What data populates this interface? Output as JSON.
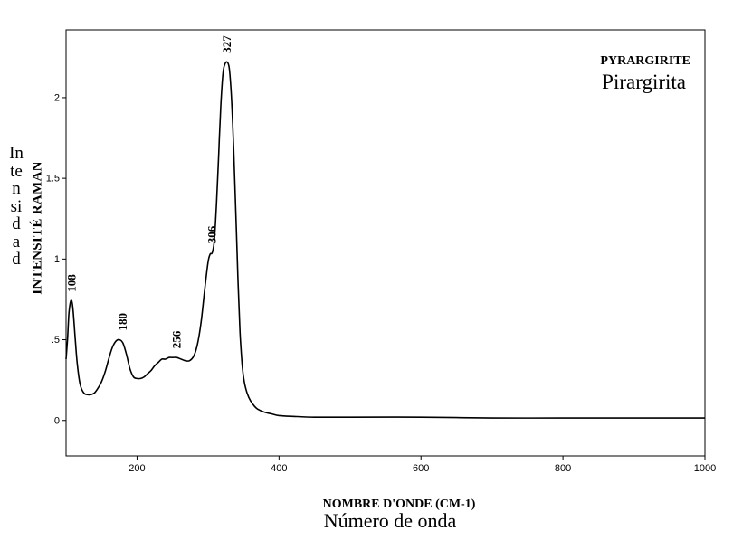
{
  "chart_data": {
    "type": "line",
    "title": "PYRARGIRITE",
    "subtitle": "Pirargirita",
    "xlabel": "NOMBRE D'ONDE (CM-1)",
    "xlabel_secondary": "Número de onda",
    "ylabel": "INTENSITÉ RAMAN",
    "ylabel_secondary": "Intensidad",
    "xlim": [
      100,
      1000
    ],
    "ylim": [
      -0.22,
      2.42
    ],
    "xticks": [
      "200",
      "400",
      "600",
      "800",
      "1000"
    ],
    "yticks": [
      "0",
      ".5",
      "1",
      "1.5",
      "2"
    ],
    "grid": false,
    "peaks": [
      {
        "x": 108,
        "y": 0.74,
        "label": "108"
      },
      {
        "x": 180,
        "y": 0.5,
        "label": "180"
      },
      {
        "x": 256,
        "y": 0.39,
        "label": "256"
      },
      {
        "x": 306,
        "y": 1.04,
        "label": "306"
      },
      {
        "x": 327,
        "y": 2.22,
        "label": "327"
      }
    ],
    "series": [
      {
        "x": [
          100,
          102,
          104,
          106,
          108,
          110,
          113,
          116,
          120,
          125,
          130,
          135,
          140,
          145,
          150,
          155,
          160,
          165,
          170,
          175,
          180,
          185,
          190,
          195,
          200,
          205,
          210,
          215,
          220,
          225,
          230,
          235,
          240,
          245,
          250,
          256,
          262,
          268,
          274,
          280,
          285,
          290,
          295,
          300,
          303,
          306,
          309,
          312,
          315,
          318,
          321,
          324,
          327,
          330,
          333,
          336,
          339,
          342,
          345,
          348,
          351,
          355,
          360,
          365,
          370,
          380,
          390,
          400,
          420,
          450,
          500,
          600,
          700,
          800,
          900,
          1000
        ],
        "y": [
          0.38,
          0.5,
          0.66,
          0.73,
          0.74,
          0.68,
          0.5,
          0.34,
          0.22,
          0.17,
          0.16,
          0.16,
          0.17,
          0.2,
          0.24,
          0.3,
          0.38,
          0.45,
          0.49,
          0.5,
          0.48,
          0.41,
          0.32,
          0.27,
          0.26,
          0.26,
          0.27,
          0.29,
          0.31,
          0.34,
          0.36,
          0.38,
          0.38,
          0.39,
          0.39,
          0.39,
          0.38,
          0.37,
          0.37,
          0.4,
          0.47,
          0.6,
          0.8,
          0.98,
          1.03,
          1.04,
          1.12,
          1.35,
          1.65,
          1.95,
          2.15,
          2.21,
          2.22,
          2.18,
          2.0,
          1.7,
          1.3,
          0.9,
          0.55,
          0.35,
          0.24,
          0.17,
          0.12,
          0.09,
          0.07,
          0.05,
          0.04,
          0.03,
          0.025,
          0.02,
          0.02,
          0.02,
          0.015,
          0.015,
          0.015,
          0.015
        ]
      }
    ]
  }
}
